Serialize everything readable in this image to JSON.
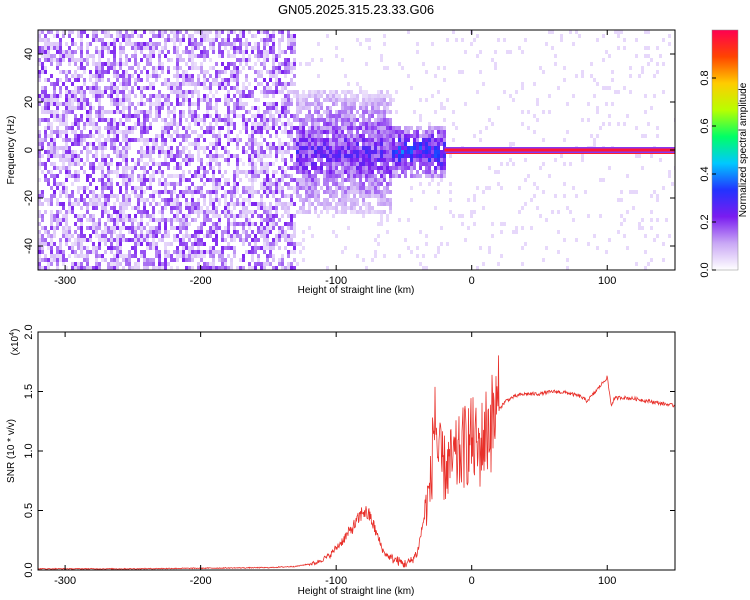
{
  "title": "GN05.2025.315.23.33.G06",
  "chart_data": [
    {
      "type": "heatmap",
      "xlabel": "Height of straight line (km)",
      "ylabel": "Frequency (Hz)",
      "xlim": [
        -320,
        150
      ],
      "ylim": [
        -50,
        50
      ],
      "xticks": [
        -300,
        -200,
        -100,
        0,
        100
      ],
      "yticks": [
        -40,
        -20,
        0,
        20,
        40
      ],
      "colorbar": {
        "label": "Normalized spectral amplitude",
        "range": [
          0,
          1
        ],
        "ticks": [
          0.0,
          0.2,
          0.4,
          0.6,
          0.8
        ],
        "colors": [
          "#ffffff",
          "#c9a8f5",
          "#7a1cf0",
          "#2233ff",
          "#00c8ff",
          "#00ff66",
          "#b8ff00",
          "#ffcc00",
          "#ff4400",
          "#ff0050"
        ]
      },
      "regions": [
        {
          "x": [
            -320,
            -130
          ],
          "freq_spread": 50,
          "amplitude": 0.15
        },
        {
          "x": [
            -130,
            -60
          ],
          "freq_spread": 22,
          "amplitude": 0.25
        },
        {
          "x": [
            -60,
            -20
          ],
          "freq_spread": 10,
          "amplitude": 0.35
        },
        {
          "x": [
            -20,
            150
          ],
          "freq_spread": 1,
          "amplitude": 0.95
        }
      ]
    },
    {
      "type": "line",
      "xlabel": "Height of straight line (km)",
      "ylabel": "SNR (10 * v/v)",
      "multiplier_label": "(x10",
      "multiplier_exp": "4",
      "multiplier_close": ")",
      "xlim": [
        -320,
        150
      ],
      "ylim": [
        0,
        2.0
      ],
      "xticks": [
        -300,
        -200,
        -100,
        0,
        100
      ],
      "yticks": [
        0.0,
        0.5,
        1.0,
        1.5,
        2.0
      ],
      "series": [
        {
          "color": "#e8302a",
          "x": [
            -320,
            -300,
            -250,
            -200,
            -150,
            -130,
            -115,
            -105,
            -95,
            -85,
            -80,
            -75,
            -70,
            -65,
            -60,
            -55,
            -50,
            -45,
            -40,
            -35,
            -30,
            -27,
            -25,
            -20,
            -15,
            -10,
            -5,
            0,
            5,
            10,
            15,
            20,
            25,
            30,
            35,
            40,
            50,
            60,
            70,
            80,
            85,
            90,
            95,
            100,
            103,
            105,
            110,
            120,
            130,
            140,
            150
          ],
          "y": [
            0.01,
            0.01,
            0.01,
            0.015,
            0.02,
            0.03,
            0.06,
            0.12,
            0.25,
            0.4,
            0.5,
            0.45,
            0.3,
            0.15,
            0.1,
            0.08,
            0.05,
            0.07,
            0.15,
            0.45,
            0.75,
            1.4,
            0.95,
            0.85,
            0.9,
            0.95,
            1.05,
            1.1,
            1.0,
            1.15,
            1.25,
            1.35,
            1.42,
            1.45,
            1.47,
            1.48,
            1.48,
            1.5,
            1.49,
            1.46,
            1.42,
            1.48,
            1.55,
            1.62,
            1.38,
            1.44,
            1.45,
            1.44,
            1.42,
            1.4,
            1.38
          ]
        }
      ]
    }
  ]
}
